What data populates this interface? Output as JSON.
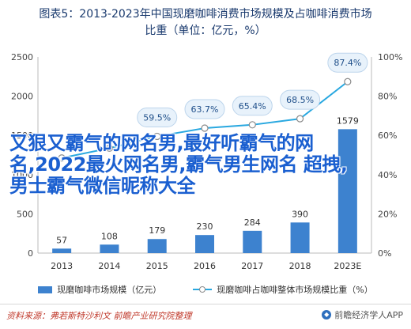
{
  "title_line1": "图表5：2013-2023年中国现磨咖啡消费市场规模及占咖啡消费市场",
  "title_line2": "比重（单位：亿元，%）",
  "overlay_text": "又狠又霸气的网名男,最好听霸气的网名,2022最火网名男,霸气男生网名 超拽,男士霸气微信昵称大全",
  "source": "资料来源：弗若斯特沙利文 前瞻产业研究院整理",
  "logo_text": "前瞻经济学人APP",
  "colors": {
    "bar": "#3d82cf",
    "line": "#29a8e0",
    "title": "#1a3a6e",
    "source": "#c0392b"
  },
  "chart_data": {
    "type": "bar",
    "categories": [
      "2013",
      "2014",
      "2015",
      "2016",
      "2017",
      "2018",
      "2023E"
    ],
    "series": [
      {
        "name": "现磨咖啡市场规模（亿元）",
        "type": "bar",
        "axis": "left",
        "values": [
          57,
          108,
          179,
          230,
          284,
          390,
          1579
        ],
        "labels": [
          "57",
          "108",
          "179",
          "230",
          "284",
          "390",
          "1579"
        ]
      },
      {
        "name": "现磨咖啡占咖啡整体市场规模比重（%）",
        "type": "line",
        "axis": "right",
        "values": [
          48.5,
          53.5,
          59.5,
          63.7,
          65.4,
          68.5,
          87.4
        ],
        "labels": [
          "",
          "",
          "59.5%",
          "63.7%",
          "65.4%",
          "68.5%",
          "87.4%"
        ]
      }
    ],
    "y_left": {
      "min": 0,
      "max": 2500,
      "ticks": [
        "0",
        "500",
        "1000",
        "1500",
        "2000",
        "2500"
      ]
    },
    "y_right": {
      "min": 0,
      "max": 100,
      "ticks": [
        "0%",
        "20%",
        "40%",
        "60%",
        "80%",
        "100%"
      ]
    },
    "grid": false,
    "legend_position": "bottom"
  }
}
